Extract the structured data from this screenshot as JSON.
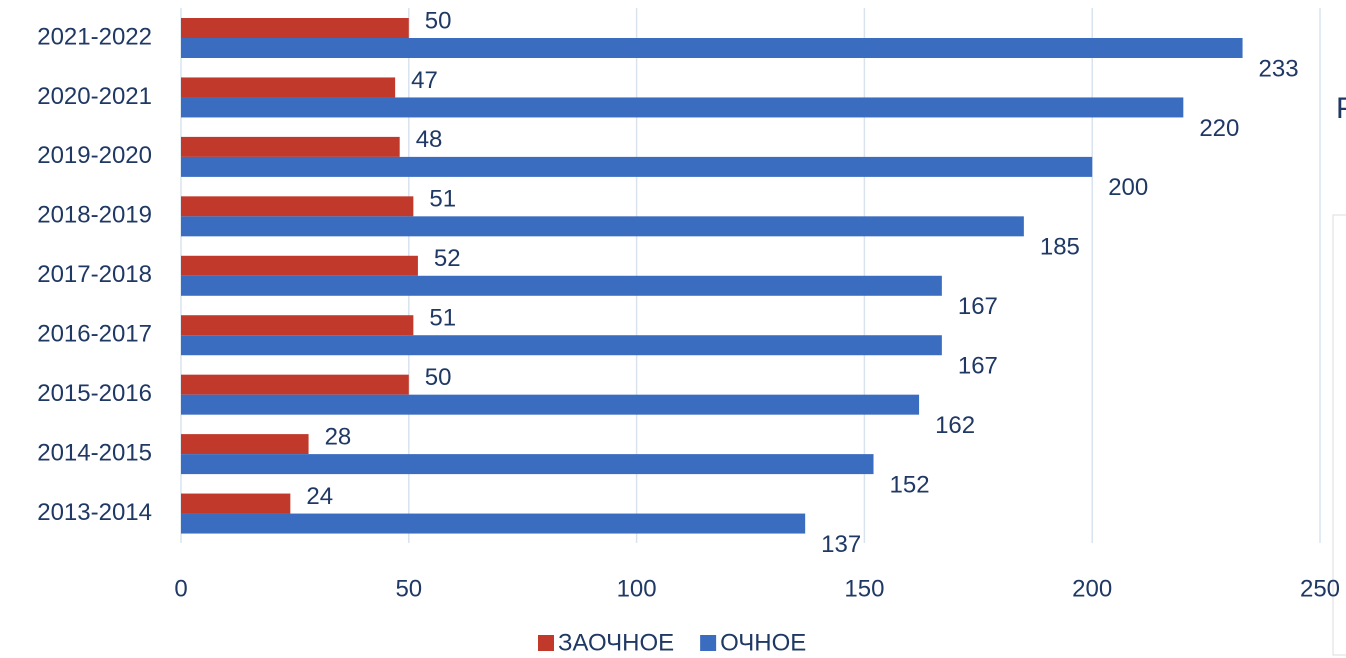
{
  "chart_data": {
    "type": "bar",
    "orientation": "horizontal",
    "categories": [
      "2013-2014",
      "2014-2015",
      "2015-2016",
      "2016-2017",
      "2017-2018",
      "2018-2019",
      "2019-2020",
      "2020-2021",
      "2021-2022"
    ],
    "series": [
      {
        "name": "ЗАОЧНОЕ",
        "color": "#c0392b",
        "values": [
          24,
          28,
          50,
          51,
          52,
          51,
          48,
          47,
          50
        ]
      },
      {
        "name": "ОЧНОЕ",
        "color": "#3a6dbf",
        "values": [
          137,
          152,
          162,
          167,
          167,
          185,
          200,
          220,
          233
        ]
      }
    ],
    "xlim": [
      0,
      250
    ],
    "xticks": [
      0,
      50,
      100,
      150,
      200,
      250
    ],
    "grid": true,
    "legend": "bottom",
    "annotation": "Р"
  }
}
